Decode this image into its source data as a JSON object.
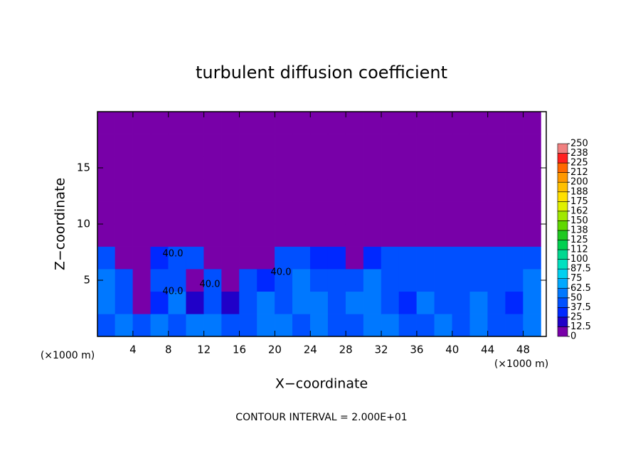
{
  "chart_data": {
    "type": "contour",
    "title": "turbulent diffusion coefficient",
    "xlabel": "X−coordinate",
    "ylabel": "Z−coordinate",
    "x_unit": "(×1000 m)",
    "x_unit_right": "(×1000 m)",
    "footer": "CONTOUR INTERVAL = 2.000E+01",
    "contour_labels": [
      "40.0",
      "40.0",
      "40.0",
      "40.0"
    ],
    "xlim": [
      0,
      50.6
    ],
    "ylim": [
      0,
      20
    ],
    "xticks": [
      4,
      8,
      12,
      16,
      20,
      24,
      28,
      32,
      36,
      40,
      44,
      48
    ],
    "yticks": [
      5,
      10,
      15
    ],
    "x": [
      1,
      3,
      5,
      7,
      9,
      11,
      13,
      15,
      17,
      19,
      21,
      23,
      25,
      27,
      29,
      31,
      33,
      35,
      37,
      39,
      41,
      43,
      45,
      47,
      49
    ],
    "y": [
      1,
      3,
      5,
      7,
      9,
      11,
      13,
      15,
      17,
      19
    ],
    "z": [
      [
        45,
        50,
        40,
        55,
        45,
        60,
        50,
        45,
        40,
        55,
        50,
        45,
        50,
        40,
        45,
        55,
        60,
        45,
        40,
        50,
        45,
        55,
        45,
        40,
        50
      ],
      [
        55,
        40,
        10,
        30,
        50,
        20,
        45,
        15,
        40,
        50,
        45,
        60,
        55,
        40,
        50,
        60,
        45,
        30,
        50,
        45,
        40,
        50,
        45,
        35,
        55
      ],
      [
        50,
        40,
        10,
        40,
        45,
        10,
        40,
        10,
        40,
        30,
        45,
        55,
        40,
        45,
        45,
        50,
        40,
        45,
        45,
        40,
        45,
        40,
        45,
        40,
        50
      ],
      [
        40,
        10,
        10,
        35,
        45,
        40,
        10,
        10,
        10,
        10,
        40,
        45,
        30,
        30,
        10,
        35,
        40,
        40,
        45,
        45,
        40,
        45,
        40,
        45,
        40
      ],
      [
        0,
        0,
        0,
        0,
        0,
        0,
        0,
        0,
        0,
        0,
        0,
        0,
        0,
        0,
        0,
        0,
        0,
        0,
        0,
        0,
        0,
        0,
        0,
        0,
        0
      ],
      [
        0,
        0,
        0,
        0,
        0,
        0,
        0,
        0,
        0,
        0,
        0,
        0,
        0,
        0,
        0,
        0,
        0,
        0,
        0,
        0,
        0,
        0,
        0,
        0,
        0
      ],
      [
        0,
        0,
        0,
        0,
        0,
        0,
        0,
        0,
        0,
        0,
        0,
        0,
        0,
        0,
        0,
        0,
        0,
        0,
        0,
        0,
        0,
        0,
        0,
        0,
        0
      ],
      [
        0,
        0,
        0,
        0,
        0,
        0,
        0,
        0,
        0,
        0,
        0,
        0,
        0,
        0,
        0,
        0,
        0,
        0,
        0,
        0,
        0,
        0,
        0,
        0,
        0
      ],
      [
        0,
        0,
        0,
        0,
        0,
        0,
        0,
        0,
        0,
        0,
        0,
        0,
        0,
        0,
        0,
        0,
        0,
        0,
        0,
        0,
        0,
        0,
        0,
        0,
        0
      ],
      [
        0,
        0,
        0,
        0,
        0,
        0,
        0,
        0,
        0,
        0,
        0,
        0,
        0,
        0,
        0,
        0,
        0,
        0,
        0,
        0,
        0,
        0,
        0,
        0,
        0
      ]
    ],
    "colorbar_ticks": [
      0,
      12.5,
      25,
      37.5,
      50,
      62.5,
      75,
      87.5,
      100,
      {
        "value": 112.5,
        "label": "112"
      },
      125,
      {
        "value": 137.5,
        "label": "138"
      },
      150,
      {
        "value": 162.5,
        "label": "162"
      },
      175,
      {
        "value": 187.5,
        "label": "188"
      },
      200,
      {
        "value": 212.5,
        "label": "212"
      },
      225,
      {
        "value": 237.5,
        "label": "238"
      },
      250
    ],
    "colors": [
      "#7800a8",
      "#2000c8",
      "#0028ff",
      "#0050ff",
      "#0078ff",
      "#00a8ff",
      "#00d0f0",
      "#00e0c0",
      "#00d890",
      "#00d050",
      "#20c820",
      "#60d800",
      "#a0e800",
      "#e0f000",
      "#ffe000",
      "#ffc000",
      "#ff9800",
      "#ff6800",
      "#ff2020",
      "#f08080"
    ]
  }
}
